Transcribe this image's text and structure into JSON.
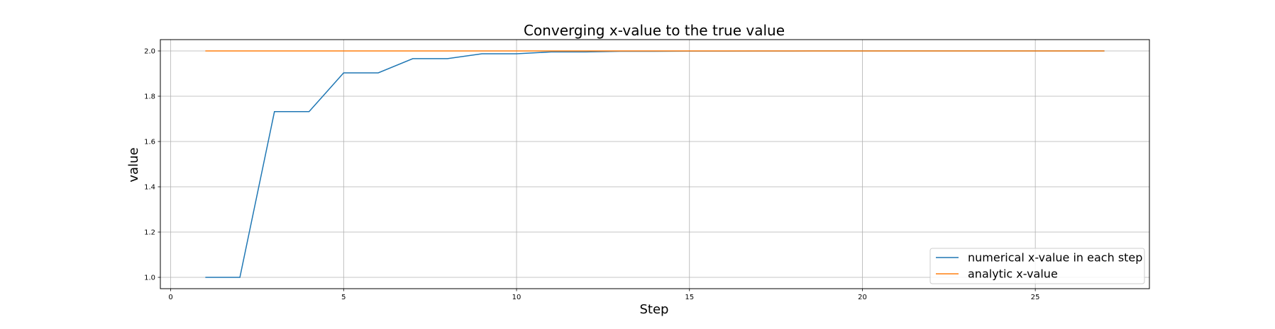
{
  "chart_data": {
    "type": "line",
    "title": "Converging x-value to the true value",
    "xlabel": "Step",
    "ylabel": "value",
    "xlim": [
      -0.3,
      28.3
    ],
    "ylim": [
      0.95,
      2.05
    ],
    "xticks": [
      0,
      5,
      10,
      15,
      20,
      25
    ],
    "yticks": [
      1.0,
      1.2,
      1.4,
      1.6,
      1.8,
      2.0
    ],
    "grid": true,
    "legend_position": "lower-right",
    "series": [
      {
        "name": "numerical x-value in each step",
        "color": "#1f77b4",
        "x": [
          1,
          2,
          3,
          4,
          5,
          6,
          7,
          8,
          9,
          10,
          11,
          12,
          13,
          14,
          15,
          16,
          17,
          18,
          19,
          20,
          21,
          22,
          23,
          24,
          25,
          26,
          27
        ],
        "values": [
          1.0,
          1.0,
          1.732,
          1.732,
          1.9032,
          1.9032,
          1.9659,
          1.9659,
          1.9876,
          1.9876,
          1.9956,
          1.9956,
          1.9984,
          1.9984,
          1.9994,
          1.9994,
          1.9998,
          1.9998,
          1.9999,
          1.9999,
          2.0,
          2.0,
          2.0,
          2.0,
          2.0,
          2.0,
          2.0
        ]
      },
      {
        "name": "analytic x-value",
        "color": "#ff7f0e",
        "x": [
          1,
          27
        ],
        "values": [
          2.0,
          2.0
        ]
      }
    ]
  }
}
